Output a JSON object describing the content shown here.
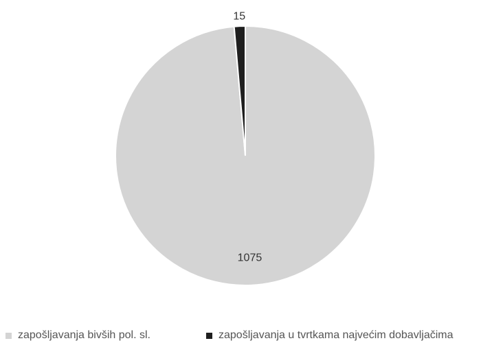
{
  "chart_data": {
    "type": "pie",
    "title": "",
    "slices": [
      {
        "label": "zapošljavanja bivših pol. sl.",
        "value": 1075,
        "color": "#d4d4d4"
      },
      {
        "label": "zapošljavanja u tvrtkama najvećim dobavljačima",
        "value": 15,
        "color": "#1f1f1f"
      }
    ],
    "data_labels": [
      "1075",
      "15"
    ],
    "legend": {
      "position": "bottom",
      "items": [
        "zapošljavanja bivših pol. sl.",
        "zapošljavanja u tvrtkama najvećim dobavljačima"
      ]
    }
  }
}
